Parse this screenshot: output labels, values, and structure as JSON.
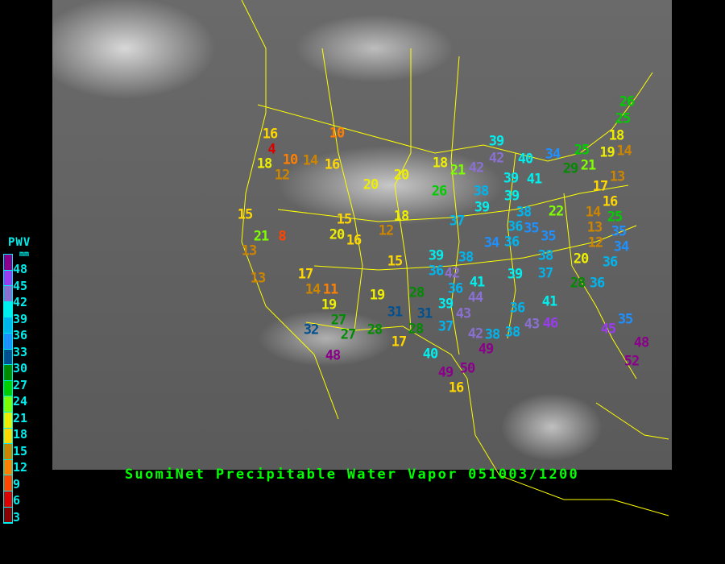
{
  "title": "SuomiNet Precipitable Water Vapor 051003/1200",
  "legend": {
    "title": "PWV",
    "unit": "mm",
    "labels": [
      "48",
      "45",
      "42",
      "39",
      "36",
      "33",
      "30",
      "27",
      "24",
      "21",
      "18",
      "15",
      "12",
      "9",
      "6",
      "3"
    ],
    "colors": [
      "#8b008b",
      "#9a3cf0",
      "#8a70d0",
      "#00eeee",
      "#00b4ee",
      "#1e90ff",
      "#00508f",
      "#008b00",
      "#00cd00",
      "#7fff00",
      "#eeee00",
      "#ffd700",
      "#cd8500",
      "#ff7f00",
      "#ff4500",
      "#dd0000",
      "#8b0000"
    ]
  },
  "colors": {
    "border": "#ffff00",
    "title": "#00ff00",
    "legend_text": "#00eeee"
  },
  "stations": [
    "16",
    "4",
    "18",
    "10",
    "14",
    "16",
    "12",
    "10",
    "20",
    "20",
    "18",
    "21",
    "26",
    "15",
    "21",
    "8",
    "13",
    "15",
    "20",
    "16",
    "12",
    "18",
    "37",
    "26",
    "25",
    "18",
    "19",
    "14",
    "25",
    "21",
    "29",
    "34",
    "40",
    "42",
    "39",
    "42",
    "39",
    "41",
    "38",
    "39",
    "13",
    "17",
    "16",
    "14",
    "13",
    "25",
    "22",
    "39",
    "38",
    "36",
    "35",
    "35",
    "34",
    "36",
    "12",
    "35",
    "34",
    "13",
    "17",
    "14",
    "11",
    "15",
    "19",
    "19",
    "28",
    "31",
    "31",
    "27",
    "27",
    "32",
    "28",
    "28",
    "17",
    "48",
    "40",
    "49",
    "50",
    "16",
    "39",
    "36",
    "38",
    "42",
    "41",
    "36",
    "44",
    "39",
    "43",
    "37",
    "42",
    "49",
    "39",
    "37",
    "38",
    "20",
    "36",
    "28",
    "36",
    "41",
    "36",
    "43",
    "46",
    "38",
    "38",
    "45",
    "35",
    "48",
    "52"
  ]
}
